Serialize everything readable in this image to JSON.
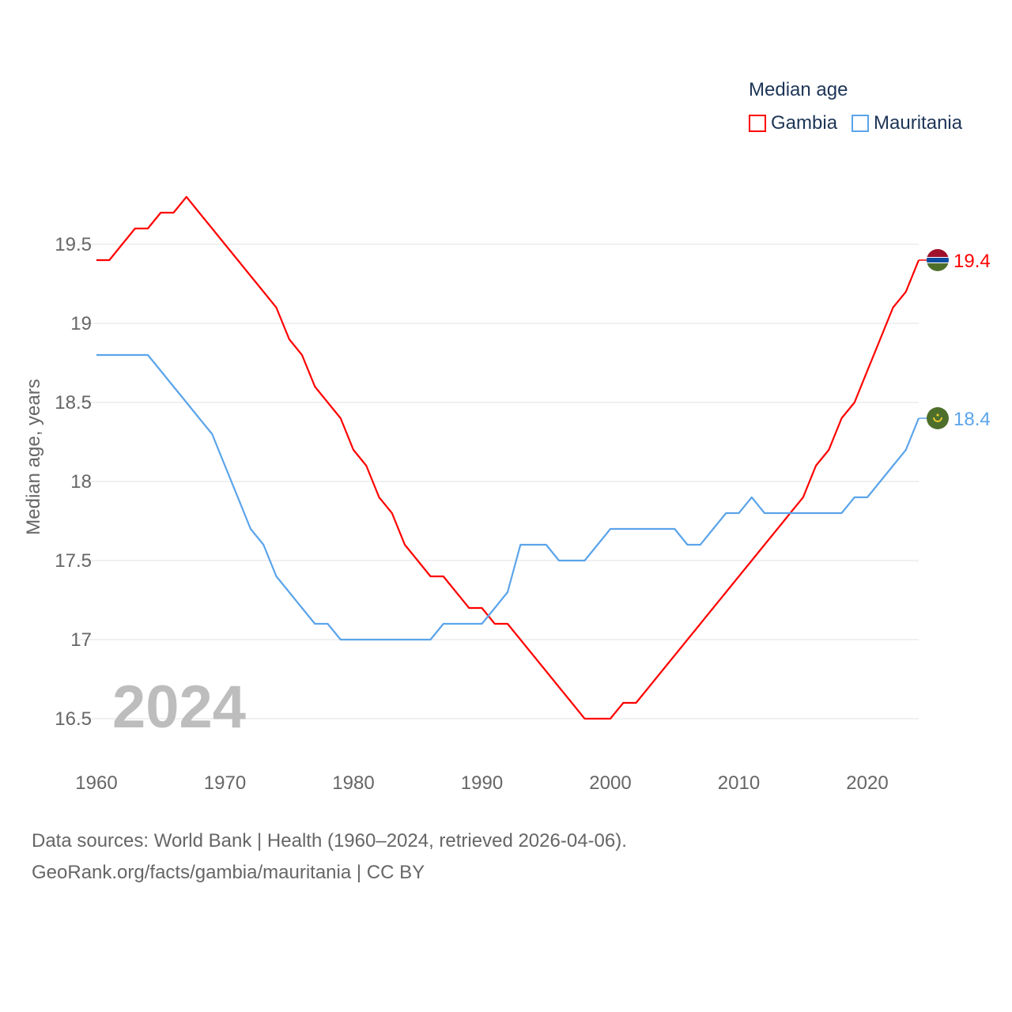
{
  "chart_data": {
    "type": "line",
    "title": "Median age",
    "ylabel": "Median age, years",
    "xlabel": "",
    "year_label": "2024",
    "xlim": [
      1960,
      2024
    ],
    "ylim": [
      16.5,
      19.8
    ],
    "x_ticks": [
      "1960",
      "1970",
      "1980",
      "1990",
      "2000",
      "2010",
      "2020"
    ],
    "y_ticks": [
      "16.5",
      "17",
      "17.5",
      "18",
      "18.5",
      "19",
      "19.5"
    ],
    "grid": true,
    "legend_position": "top-right",
    "x": [
      1960,
      1961,
      1962,
      1963,
      1964,
      1965,
      1966,
      1967,
      1968,
      1969,
      1970,
      1971,
      1972,
      1973,
      1974,
      1975,
      1976,
      1977,
      1978,
      1979,
      1980,
      1981,
      1982,
      1983,
      1984,
      1985,
      1986,
      1987,
      1988,
      1989,
      1990,
      1991,
      1992,
      1993,
      1994,
      1995,
      1996,
      1997,
      1998,
      1999,
      2000,
      2001,
      2002,
      2003,
      2004,
      2005,
      2006,
      2007,
      2008,
      2009,
      2010,
      2011,
      2012,
      2013,
      2014,
      2015,
      2016,
      2017,
      2018,
      2019,
      2020,
      2021,
      2022,
      2023,
      2024
    ],
    "series": [
      {
        "name": "Gambia",
        "color": "#ff0000",
        "end_label": "19.4",
        "flag": "gambia-flag-icon",
        "values": [
          19.4,
          19.4,
          19.5,
          19.6,
          19.6,
          19.7,
          19.7,
          19.8,
          19.7,
          19.6,
          19.5,
          19.4,
          19.3,
          19.2,
          19.1,
          18.9,
          18.8,
          18.6,
          18.5,
          18.4,
          18.2,
          18.1,
          17.9,
          17.8,
          17.6,
          17.5,
          17.4,
          17.4,
          17.3,
          17.2,
          17.2,
          17.1,
          17.1,
          17.0,
          16.9,
          16.8,
          16.7,
          16.6,
          16.5,
          16.5,
          16.5,
          16.6,
          16.6,
          16.7,
          16.8,
          16.9,
          17.0,
          17.1,
          17.2,
          17.3,
          17.4,
          17.5,
          17.6,
          17.7,
          17.8,
          17.9,
          18.1,
          18.2,
          18.4,
          18.5,
          18.7,
          18.9,
          19.1,
          19.2,
          19.4
        ]
      },
      {
        "name": "Mauritania",
        "color": "#5ba4ea",
        "end_label": "18.4",
        "flag": "mauritania-flag-icon",
        "values": [
          18.8,
          18.8,
          18.8,
          18.8,
          18.8,
          18.7,
          18.6,
          18.5,
          18.4,
          18.3,
          18.1,
          17.9,
          17.7,
          17.6,
          17.4,
          17.3,
          17.2,
          17.1,
          17.1,
          17.0,
          17.0,
          17.0,
          17.0,
          17.0,
          17.0,
          17.0,
          17.0,
          17.1,
          17.1,
          17.1,
          17.1,
          17.2,
          17.3,
          17.6,
          17.6,
          17.6,
          17.5,
          17.5,
          17.5,
          17.6,
          17.7,
          17.7,
          17.7,
          17.7,
          17.7,
          17.7,
          17.6,
          17.6,
          17.7,
          17.8,
          17.8,
          17.9,
          17.8,
          17.8,
          17.8,
          17.8,
          17.8,
          17.8,
          17.8,
          17.9,
          17.9,
          18.0,
          18.1,
          18.2,
          18.4
        ]
      }
    ]
  },
  "footer": {
    "line1": "Data sources: World Bank | Health (1960–2024, retrieved 2026-04-06).",
    "line2": "GeoRank.org/facts/gambia/mauritania | CC BY"
  }
}
